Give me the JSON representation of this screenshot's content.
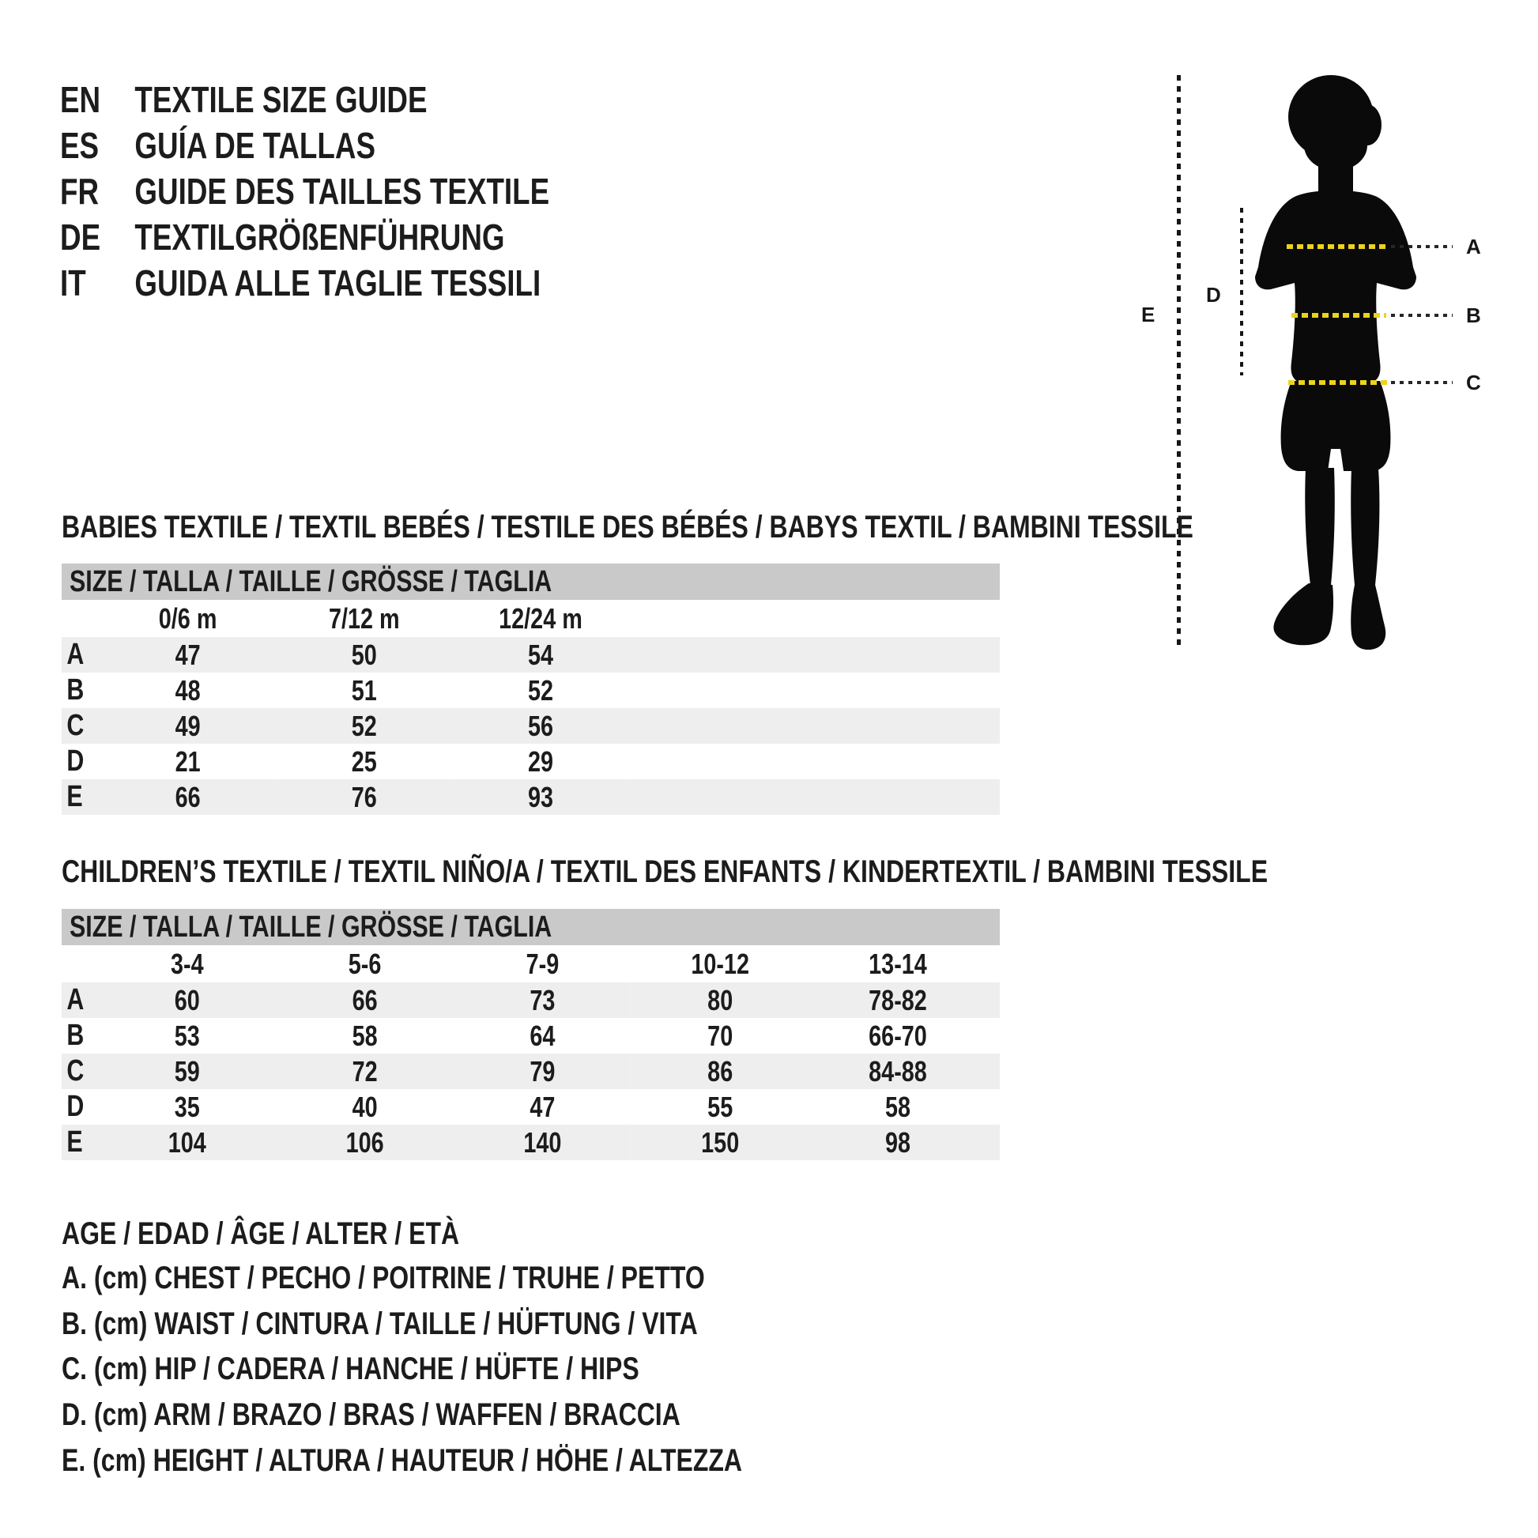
{
  "page": {
    "background": "#ffffff",
    "text_color": "#1c1c1c"
  },
  "languages": [
    {
      "code": "EN",
      "title": "TEXTILE SIZE GUIDE"
    },
    {
      "code": "ES",
      "title": "GUÍA DE TALLAS"
    },
    {
      "code": "FR",
      "title": "GUIDE DES TAILLES TEXTILE"
    },
    {
      "code": "DE",
      "title": "TEXTILGRÖßENFÜHRUNG"
    },
    {
      "code": "IT",
      "title": "GUIDA ALLE TAGLIE TESSILI"
    }
  ],
  "figure": {
    "labels": {
      "chest": "A",
      "waist": "B",
      "hip": "C",
      "arm": "D",
      "height": "E"
    },
    "colors": {
      "silhouette": "#0a0a0a",
      "measure_yellow": "#ecd31d",
      "measure_dark": "#262626"
    }
  },
  "babies": {
    "section_title": "BABIES TEXTILE / TEXTIL BEBÉS / TESTILE DES BÉBÉS / BABYS TEXTIL / BAMBINI TESSILE",
    "size_bar": "SIZE / TALLA / TAILLE / GRÖSSE / TAGLIA",
    "columns": [
      "0/6 m",
      "7/12 m",
      "12/24 m"
    ],
    "rows": [
      {
        "label": "A",
        "values": [
          "47",
          "50",
          "54"
        ]
      },
      {
        "label": "B",
        "values": [
          "48",
          "51",
          "52"
        ]
      },
      {
        "label": "C",
        "values": [
          "49",
          "52",
          "56"
        ]
      },
      {
        "label": "D",
        "values": [
          "21",
          "25",
          "29"
        ]
      },
      {
        "label": "E",
        "values": [
          "66",
          "76",
          "93"
        ]
      }
    ]
  },
  "children": {
    "section_title": "CHILDREN’S TEXTILE / TEXTIL NIÑO/A / TEXTIL DES ENFANTS / KINDERTEXTIL / BAMBINI TESSILE",
    "size_bar": "SIZE / TALLA / TAILLE / GRÖSSE / TAGLIA",
    "columns": [
      "3-4",
      "5-6",
      "7-9",
      "10-12",
      "13-14"
    ],
    "rows": [
      {
        "label": "A",
        "values": [
          "60",
          "66",
          "73",
          "80",
          "78-82"
        ]
      },
      {
        "label": "B",
        "values": [
          "53",
          "58",
          "64",
          "70",
          "66-70"
        ]
      },
      {
        "label": "C",
        "values": [
          "59",
          "72",
          "79",
          "86",
          "84-88"
        ]
      },
      {
        "label": "D",
        "values": [
          "35",
          "40",
          "47",
          "55",
          "58"
        ]
      },
      {
        "label": "E",
        "values": [
          "104",
          "106",
          "140",
          "150",
          "98"
        ]
      }
    ]
  },
  "legend": [
    "AGE / EDAD / ÂGE / ALTER / ETÀ",
    "A. (cm) CHEST / PECHO / POITRINE / TRUHE / PETTO",
    "B. (cm) WAIST / CINTURA / TAILLE / HÜFTUNG / VITA",
    "C. (cm) HIP / CADERA / HANCHE / HÜFTE / HIPS",
    "D. (cm) ARM / BRAZO / BRAS / WAFFEN / BRACCIA",
    "E. (cm) HEIGHT / ALTURA / HAUTEUR / HÖHE / ALTEZZA"
  ],
  "table_colors": {
    "header_bar": "#c9c9c9",
    "zebra": "#eeeeee"
  }
}
